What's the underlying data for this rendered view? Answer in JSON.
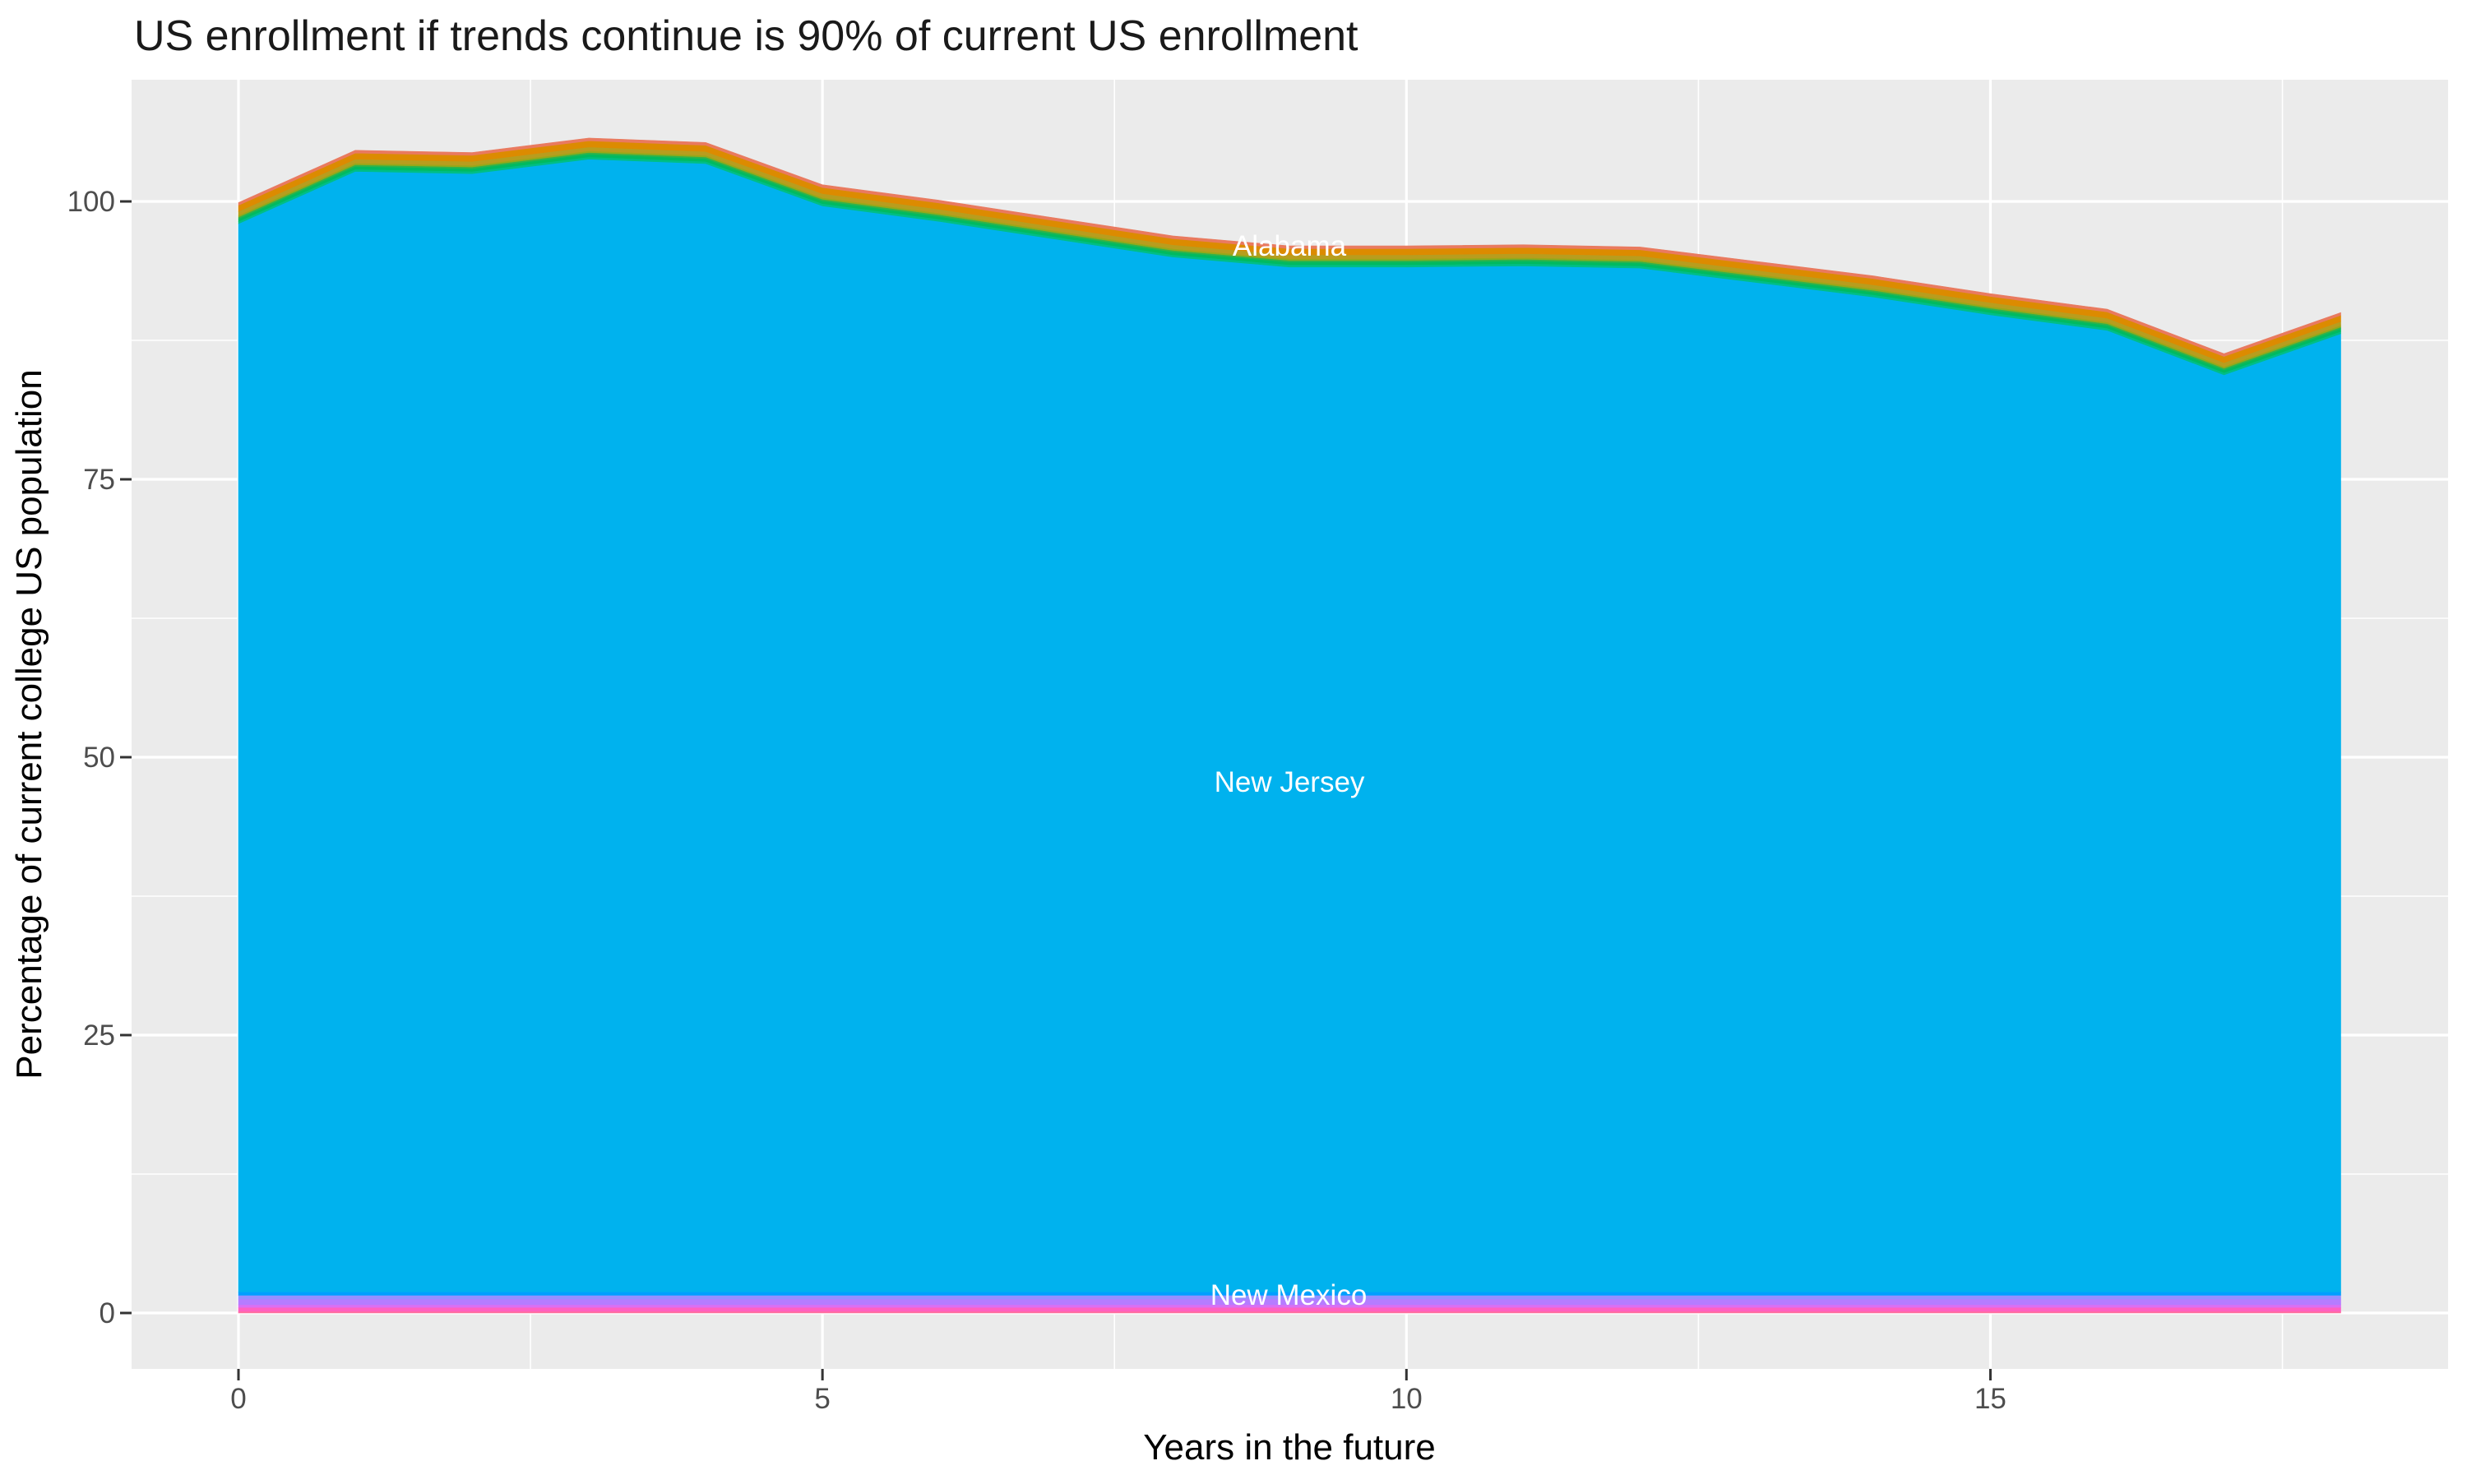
{
  "title": "US enrollment if trends continue is 90% of current US enrollment",
  "axis": {
    "x_title": "Years in the future",
    "y_title": "Percentage of current college US population",
    "x_tick_labels": [
      "0",
      "5",
      "10",
      "15"
    ],
    "y_tick_labels": [
      "0",
      "25",
      "50",
      "75",
      "100"
    ]
  },
  "colors": {
    "page_background": "#FFFFFF",
    "panel_background": "#EBEBEB",
    "gridline": "#FFFFFF",
    "tick_mark": "#333333",
    "tick_label": "#4D4D4D",
    "title_text": "#1A1A1A",
    "axis_title_text": "#000000",
    "area_label_text": "#FFFFFF",
    "new_jersey_fill": "#00B2EE"
  },
  "chart_data": {
    "type": "area",
    "stacked": true,
    "title": "US enrollment if trends continue is 90% of current US enrollment",
    "xlabel": "Years in the future",
    "ylabel": "Percentage of current college US population",
    "legend": "none",
    "grid": "white major and minor gridlines on gray panel",
    "x": [
      0,
      1,
      2,
      3,
      4,
      5,
      6,
      7,
      8,
      9,
      10,
      11,
      12,
      13,
      14,
      15,
      16,
      17,
      18
    ],
    "x_ticks": [
      0,
      5,
      10,
      15
    ],
    "y_ticks": [
      0,
      25,
      50,
      75,
      100
    ],
    "x_minor_gridlines": [
      2.5,
      7.5,
      12.5,
      17.5
    ],
    "y_minor_gridlines": [
      12.5,
      37.5,
      62.5,
      87.5
    ],
    "xlim": [
      -0.92,
      18.93
    ],
    "ylim": [
      -5.0,
      110.9
    ],
    "total_top_edge": [
      99.9,
      104.6,
      104.4,
      105.7,
      105.3,
      101.5,
      100.1,
      98.5,
      96.9,
      96.0,
      96.0,
      96.1,
      95.9,
      94.6,
      93.3,
      91.7,
      90.3,
      86.3,
      90.0
    ],
    "series": [
      {
        "name": "states-band-pink-red",
        "color": "#FF6C9E",
        "constant_value": 0.15
      },
      {
        "name": "states-band-hot-pink",
        "color": "#FF61C0",
        "constant_value": 0.35
      },
      {
        "name": "states-band-orchid",
        "color": "#DB6FF2",
        "constant_value": 0.25
      },
      {
        "name": "states-band-purple",
        "color": "#B57CFF",
        "constant_value": 0.5
      },
      {
        "name": "states-band-periwinkle",
        "color": "#9590FF",
        "constant_value": 0.35
      },
      {
        "name": "New Mexico",
        "color": "#009FFF",
        "constant_value": 0.3,
        "labeled": true
      },
      {
        "name": "New Jersey",
        "color": "#00B2EE",
        "labeled": true,
        "values": [
          96.1,
          100.8,
          100.6,
          101.9,
          101.5,
          97.7,
          96.3,
          94.7,
          93.1,
          92.2,
          92.2,
          92.3,
          92.1,
          90.8,
          89.5,
          87.9,
          86.5,
          82.5,
          86.2
        ]
      },
      {
        "name": "states-band-spring-green",
        "color": "#00BE86",
        "constant_value": 0.2
      },
      {
        "name": "states-band-green-2",
        "color": "#00BA60",
        "constant_value": 0.25
      },
      {
        "name": "states-band-green",
        "color": "#2FB34B",
        "constant_value": 0.15
      },
      {
        "name": "states-band-yellow-green",
        "color": "#97A81A",
        "constant_value": 0.15
      },
      {
        "name": "states-band-olive",
        "color": "#B89D1E",
        "constant_value": 0.35
      },
      {
        "name": "states-band-orange",
        "color": "#DC8B00",
        "constant_value": 0.55
      },
      {
        "name": "Alabama",
        "color": "#E97A5F",
        "constant_value": 0.25,
        "labeled": true
      }
    ],
    "area_labels": [
      {
        "text": "Alabama",
        "x": 9.0,
        "y": 95.9,
        "color": "#FFFFFF"
      },
      {
        "text": "New Jersey",
        "x": 9.0,
        "y": 47.7,
        "color": "#FFFFFF"
      },
      {
        "text": "New Mexico",
        "x": 8.99,
        "y": 1.55,
        "color": "#FFFFFF"
      }
    ]
  }
}
